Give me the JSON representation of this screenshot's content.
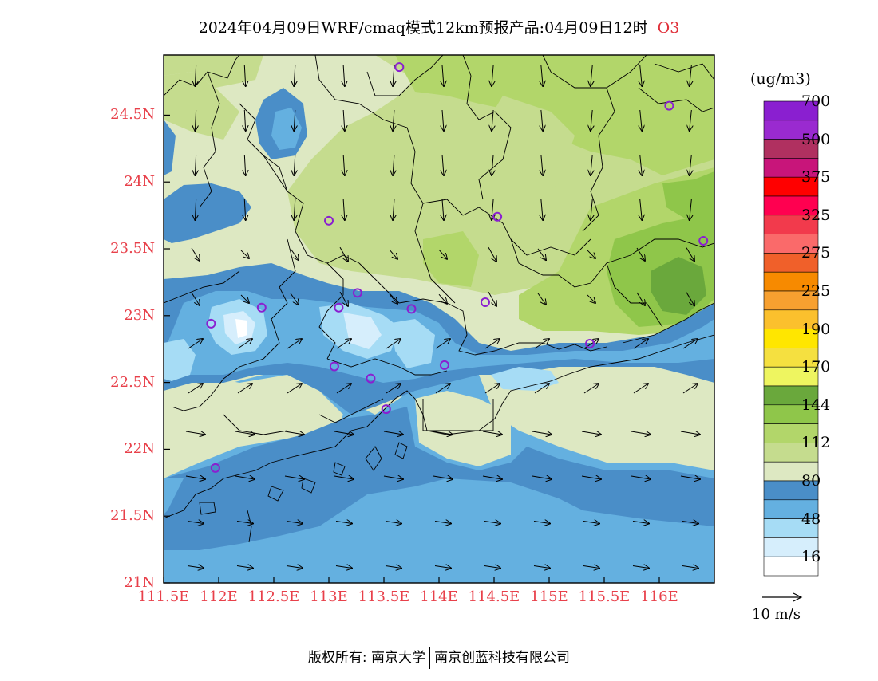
{
  "title": {
    "text": "2024年04月09日WRF/cmaq模式12km预报产品:04月09日12时",
    "species": "O3"
  },
  "map": {
    "lat_labels": [
      "24.5N",
      "24N",
      "23.5N",
      "23N",
      "22.5N",
      "22N",
      "21.5N",
      "21N"
    ],
    "lon_labels": [
      "111.5E",
      "112E",
      "112.5E",
      "113E",
      "113.5E",
      "114E",
      "114.5E",
      "115E",
      "115.5E",
      "116E"
    ],
    "lat_range": [
      21,
      24.95
    ],
    "lon_range": [
      111.5,
      116.5
    ],
    "field_colors": {
      "16_48": "#a6dcf5",
      "48_64": "#64b0e0",
      "64_80": "#4a8ec8",
      "80_96": "#dde8c2",
      "96_112": "#c5dc8e",
      "112_128": "#b2d66a",
      "128_144": "#8fc64a",
      "144_170": "#6aa83c",
      "lt_16": "#eef7fc"
    },
    "station_color": "#8a1fd0",
    "stations": [
      {
        "lon": 113.64,
        "lat": 24.86
      },
      {
        "lon": 116.09,
        "lat": 24.57
      },
      {
        "lon": 113.0,
        "lat": 23.71
      },
      {
        "lon": 114.53,
        "lat": 23.74
      },
      {
        "lon": 116.4,
        "lat": 23.56
      },
      {
        "lon": 112.39,
        "lat": 23.06
      },
      {
        "lon": 111.93,
        "lat": 22.94
      },
      {
        "lon": 113.09,
        "lat": 23.06
      },
      {
        "lon": 113.26,
        "lat": 23.17
      },
      {
        "lon": 113.75,
        "lat": 23.05
      },
      {
        "lon": 114.42,
        "lat": 23.1
      },
      {
        "lon": 115.37,
        "lat": 22.79
      },
      {
        "lon": 113.05,
        "lat": 22.62
      },
      {
        "lon": 113.38,
        "lat": 22.53
      },
      {
        "lon": 114.05,
        "lat": 22.63
      },
      {
        "lon": 113.52,
        "lat": 22.3
      },
      {
        "lon": 111.97,
        "lat": 21.86
      }
    ]
  },
  "colorbar": {
    "unit": "(ug/m3)",
    "colors": [
      "#ffffff",
      "#d6eefc",
      "#a6dcf5",
      "#64b0e0",
      "#4a8ec8",
      "#dde8c2",
      "#c5dc8e",
      "#b2d66a",
      "#8fc64a",
      "#6aa83c",
      "#eef560",
      "#f5e040",
      "#ffe600",
      "#fbc02d",
      "#f7a030",
      "#f78a00",
      "#f0602a",
      "#fa6a6a",
      "#f23a4c",
      "#ff0050",
      "#ff0000",
      "#c8157a",
      "#b03060",
      "#9a2ad0",
      "#8a1fd0"
    ],
    "labels": [
      "16",
      "48",
      "80",
      "112",
      "144",
      "170",
      "190",
      "225",
      "275",
      "325",
      "375",
      "500",
      "700"
    ]
  },
  "wind_reference": "10 m/s",
  "footer": {
    "left": "版权所有: 南京大学",
    "right": "南京创蓝科技有限公司"
  }
}
